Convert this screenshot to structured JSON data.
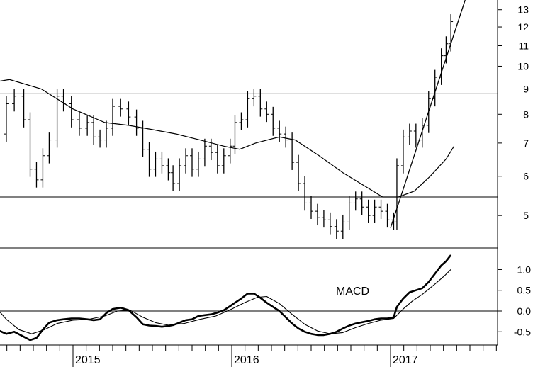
{
  "chart_data": [
    {
      "type": "ohlc",
      "scale": "log",
      "ylim": [
        4.3,
        13.6
      ],
      "price_ticks": [
        5,
        6,
        7,
        8,
        9,
        10,
        11,
        12,
        13
      ],
      "x_ticks": [
        "2015",
        "2016",
        "2017"
      ],
      "horizontal_levels": [
        8.8,
        5.45
      ],
      "trendlines": [
        {
          "from": [
            "2017-01",
            4.72
          ],
          "to": [
            "2017-06-20",
            13.6
          ]
        }
      ],
      "weekly_close": [
        [
          2014.42,
          8.9
        ],
        [
          2014.47,
          8.2
        ],
        [
          2014.52,
          7.3
        ],
        [
          2014.58,
          8.4
        ],
        [
          2014.63,
          8.7
        ],
        [
          2014.69,
          7.8
        ],
        [
          2014.73,
          6.2
        ],
        [
          2014.77,
          5.9
        ],
        [
          2014.81,
          6.6
        ],
        [
          2014.85,
          7.1
        ],
        [
          2014.9,
          8.7
        ],
        [
          2014.94,
          8.4
        ],
        [
          2014.99,
          7.8
        ],
        [
          2015.04,
          7.5
        ],
        [
          2015.09,
          7.7
        ],
        [
          2015.13,
          7.2
        ],
        [
          2015.17,
          7.1
        ],
        [
          2015.21,
          7.5
        ],
        [
          2015.25,
          8.3
        ],
        [
          2015.3,
          8.2
        ],
        [
          2015.35,
          7.9
        ],
        [
          2015.4,
          7.5
        ],
        [
          2015.44,
          6.8
        ],
        [
          2015.48,
          6.2
        ],
        [
          2015.52,
          6.5
        ],
        [
          2015.56,
          6.3
        ],
        [
          2015.6,
          6.1
        ],
        [
          2015.63,
          5.8
        ],
        [
          2015.67,
          6.3
        ],
        [
          2015.71,
          6.6
        ],
        [
          2015.75,
          6.2
        ],
        [
          2015.79,
          6.5
        ],
        [
          2015.83,
          6.9
        ],
        [
          2015.87,
          6.7
        ],
        [
          2015.91,
          6.3
        ],
        [
          2015.95,
          6.6
        ],
        [
          2015.99,
          6.9
        ],
        [
          2016.02,
          7.7
        ],
        [
          2016.06,
          7.8
        ],
        [
          2016.1,
          8.6
        ],
        [
          2016.14,
          8.7
        ],
        [
          2016.18,
          8.2
        ],
        [
          2016.22,
          8.0
        ],
        [
          2016.26,
          7.5
        ],
        [
          2016.3,
          7.3
        ],
        [
          2016.34,
          7.1
        ],
        [
          2016.38,
          6.4
        ],
        [
          2016.42,
          5.8
        ],
        [
          2016.46,
          5.3
        ],
        [
          2016.5,
          5.1
        ],
        [
          2016.54,
          4.95
        ],
        [
          2016.58,
          4.9
        ],
        [
          2016.62,
          4.75
        ],
        [
          2016.66,
          4.65
        ],
        [
          2016.7,
          4.85
        ],
        [
          2016.74,
          5.3
        ],
        [
          2016.78,
          5.4
        ],
        [
          2016.82,
          5.2
        ],
        [
          2016.86,
          5.0
        ],
        [
          2016.9,
          5.2
        ],
        [
          2016.94,
          5.1
        ],
        [
          2016.98,
          4.9
        ],
        [
          2017.02,
          4.85
        ],
        [
          2017.04,
          6.3
        ],
        [
          2017.08,
          7.2
        ],
        [
          2017.12,
          7.4
        ],
        [
          2017.16,
          7.1
        ],
        [
          2017.2,
          7.6
        ],
        [
          2017.24,
          8.6
        ],
        [
          2017.28,
          9.5
        ],
        [
          2017.32,
          10.5
        ],
        [
          2017.35,
          11.1
        ],
        [
          2017.38,
          12.3
        ]
      ],
      "moving_average": [
        [
          2014.42,
          9.2
        ],
        [
          2014.6,
          9.4
        ],
        [
          2014.8,
          9.0
        ],
        [
          2015.0,
          8.2
        ],
        [
          2015.2,
          7.7
        ],
        [
          2015.35,
          7.6
        ],
        [
          2015.5,
          7.45
        ],
        [
          2015.65,
          7.3
        ],
        [
          2015.8,
          7.1
        ],
        [
          2015.95,
          6.9
        ],
        [
          2016.05,
          6.8
        ],
        [
          2016.15,
          7.0
        ],
        [
          2016.3,
          7.2
        ],
        [
          2016.4,
          7.1
        ],
        [
          2016.55,
          6.6
        ],
        [
          2016.7,
          6.1
        ],
        [
          2016.85,
          5.7
        ],
        [
          2016.95,
          5.45
        ],
        [
          2017.05,
          5.45
        ],
        [
          2017.15,
          5.6
        ],
        [
          2017.25,
          6.0
        ],
        [
          2017.35,
          6.5
        ],
        [
          2017.4,
          6.9
        ]
      ]
    },
    {
      "type": "line",
      "title": "MACD",
      "ylim": [
        -0.82,
        1.52
      ],
      "y_ticks": [
        -0.5,
        0.0,
        0.5,
        1.0
      ],
      "y_tick_labels": [
        "-0.5",
        "0.0",
        "0.5",
        "1.0"
      ],
      "zero_line": true,
      "series": [
        {
          "values": [
            [
              2014.42,
              0.15
            ],
            [
              2014.47,
              -0.15
            ],
            [
              2014.52,
              -0.45
            ],
            [
              2014.58,
              -0.55
            ],
            [
              2014.63,
              -0.5
            ],
            [
              2014.69,
              -0.62
            ],
            [
              2014.73,
              -0.7
            ],
            [
              2014.77,
              -0.65
            ],
            [
              2014.81,
              -0.45
            ],
            [
              2014.85,
              -0.28
            ],
            [
              2014.9,
              -0.22
            ],
            [
              2014.94,
              -0.2
            ],
            [
              2014.99,
              -0.18
            ],
            [
              2015.04,
              -0.18
            ],
            [
              2015.09,
              -0.2
            ],
            [
              2015.13,
              -0.22
            ],
            [
              2015.17,
              -0.2
            ],
            [
              2015.21,
              -0.05
            ],
            [
              2015.25,
              0.05
            ],
            [
              2015.3,
              0.08
            ],
            [
              2015.35,
              0.02
            ],
            [
              2015.4,
              -0.15
            ],
            [
              2015.44,
              -0.32
            ],
            [
              2015.48,
              -0.35
            ],
            [
              2015.52,
              -0.36
            ],
            [
              2015.56,
              -0.38
            ],
            [
              2015.6,
              -0.36
            ],
            [
              2015.63,
              -0.34
            ],
            [
              2015.67,
              -0.28
            ],
            [
              2015.71,
              -0.22
            ],
            [
              2015.75,
              -0.2
            ],
            [
              2015.79,
              -0.12
            ],
            [
              2015.83,
              -0.1
            ],
            [
              2015.87,
              -0.08
            ],
            [
              2015.91,
              -0.04
            ],
            [
              2015.95,
              0.02
            ],
            [
              2015.99,
              0.12
            ],
            [
              2016.02,
              0.2
            ],
            [
              2016.06,
              0.3
            ],
            [
              2016.1,
              0.42
            ],
            [
              2016.14,
              0.42
            ],
            [
              2016.18,
              0.32
            ],
            [
              2016.22,
              0.2
            ],
            [
              2016.26,
              0.1
            ],
            [
              2016.3,
              0.0
            ],
            [
              2016.34,
              -0.15
            ],
            [
              2016.38,
              -0.3
            ],
            [
              2016.42,
              -0.42
            ],
            [
              2016.46,
              -0.5
            ],
            [
              2016.5,
              -0.55
            ],
            [
              2016.54,
              -0.58
            ],
            [
              2016.58,
              -0.58
            ],
            [
              2016.62,
              -0.55
            ],
            [
              2016.66,
              -0.5
            ],
            [
              2016.7,
              -0.42
            ],
            [
              2016.74,
              -0.35
            ],
            [
              2016.78,
              -0.3
            ],
            [
              2016.82,
              -0.27
            ],
            [
              2016.86,
              -0.24
            ],
            [
              2016.9,
              -0.2
            ],
            [
              2016.94,
              -0.18
            ],
            [
              2016.98,
              -0.18
            ],
            [
              2017.02,
              -0.15
            ],
            [
              2017.04,
              0.1
            ],
            [
              2017.08,
              0.3
            ],
            [
              2017.12,
              0.45
            ],
            [
              2017.16,
              0.5
            ],
            [
              2017.2,
              0.55
            ],
            [
              2017.24,
              0.7
            ],
            [
              2017.28,
              0.9
            ],
            [
              2017.32,
              1.1
            ],
            [
              2017.35,
              1.2
            ],
            [
              2017.38,
              1.35
            ]
          ]
        },
        {
          "values": [
            [
              2014.42,
              0.45
            ],
            [
              2014.5,
              0.15
            ],
            [
              2014.58,
              -0.2
            ],
            [
              2014.66,
              -0.45
            ],
            [
              2014.74,
              -0.55
            ],
            [
              2014.82,
              -0.45
            ],
            [
              2014.9,
              -0.3
            ],
            [
              2015.0,
              -0.22
            ],
            [
              2015.1,
              -0.2
            ],
            [
              2015.2,
              -0.12
            ],
            [
              2015.28,
              0.0
            ],
            [
              2015.36,
              0.02
            ],
            [
              2015.44,
              -0.15
            ],
            [
              2015.52,
              -0.28
            ],
            [
              2015.6,
              -0.34
            ],
            [
              2015.7,
              -0.3
            ],
            [
              2015.8,
              -0.2
            ],
            [
              2015.9,
              -0.12
            ],
            [
              2016.0,
              0.05
            ],
            [
              2016.08,
              0.2
            ],
            [
              2016.16,
              0.33
            ],
            [
              2016.22,
              0.35
            ],
            [
              2016.3,
              0.18
            ],
            [
              2016.38,
              -0.08
            ],
            [
              2016.46,
              -0.32
            ],
            [
              2016.54,
              -0.48
            ],
            [
              2016.62,
              -0.55
            ],
            [
              2016.7,
              -0.52
            ],
            [
              2016.78,
              -0.4
            ],
            [
              2016.86,
              -0.3
            ],
            [
              2016.94,
              -0.22
            ],
            [
              2017.02,
              -0.18
            ],
            [
              2017.08,
              0.05
            ],
            [
              2017.14,
              0.25
            ],
            [
              2017.2,
              0.4
            ],
            [
              2017.28,
              0.65
            ],
            [
              2017.34,
              0.85
            ],
            [
              2017.38,
              1.0
            ]
          ]
        }
      ]
    }
  ]
}
